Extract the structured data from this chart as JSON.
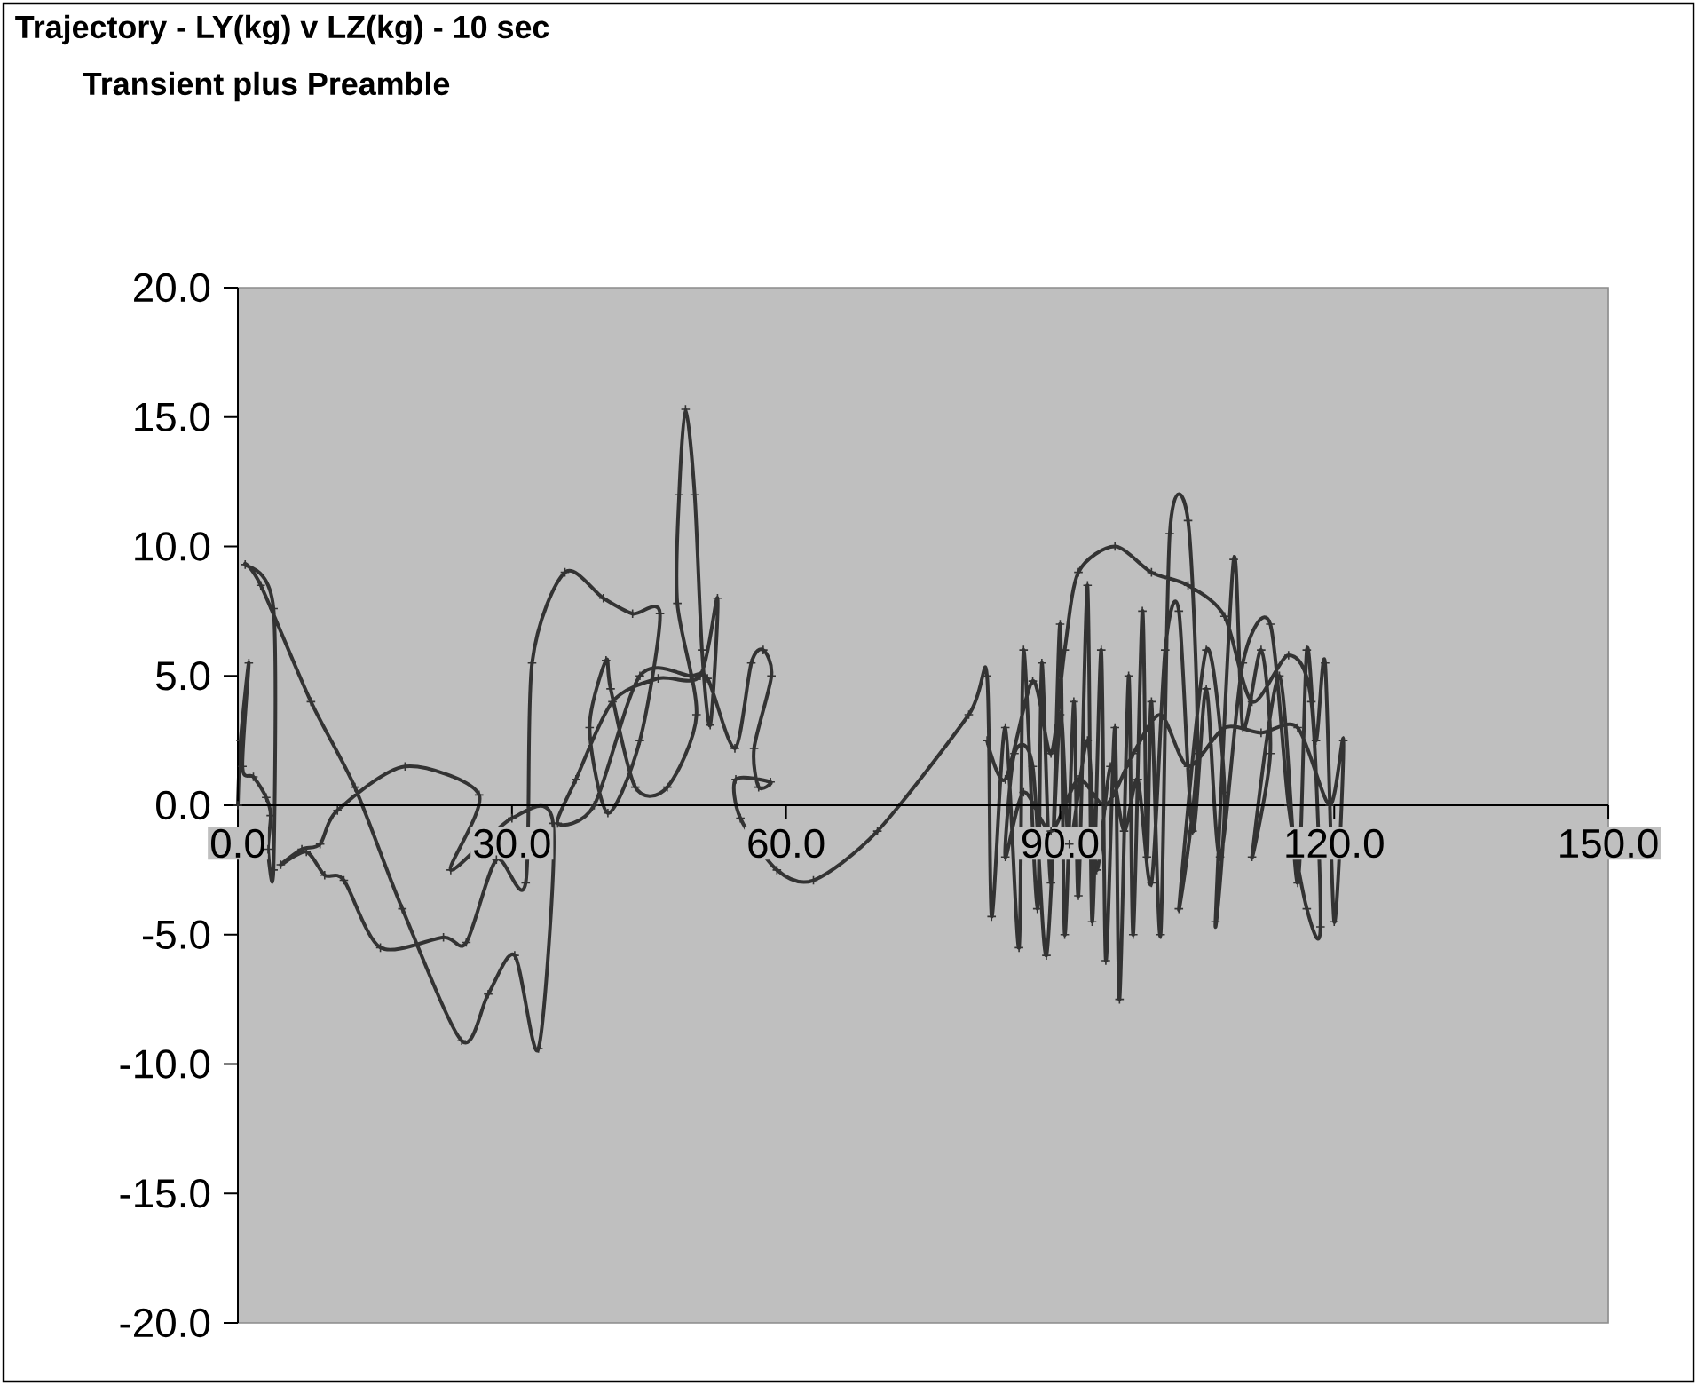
{
  "chart_data": {
    "type": "line",
    "title": "Trajectory - LY(kg) v LZ(kg) - 10 sec",
    "subtitle": "Transient plus Preamble",
    "xlim": [
      0,
      150
    ],
    "ylim": [
      -20,
      20
    ],
    "xticks": [
      {
        "value": 0,
        "label": "0.0"
      },
      {
        "value": 30,
        "label": "30.0"
      },
      {
        "value": 60,
        "label": "60.0"
      },
      {
        "value": 90,
        "label": "90.0"
      },
      {
        "value": 120,
        "label": "120.0"
      },
      {
        "value": 150,
        "label": "150.0"
      }
    ],
    "yticks": [
      {
        "value": -20,
        "label": "-20.0"
      },
      {
        "value": -15,
        "label": "-15.0"
      },
      {
        "value": -10,
        "label": "-10.0"
      },
      {
        "value": -5,
        "label": "-5.0"
      },
      {
        "value": 0,
        "label": "0.0"
      },
      {
        "value": 5,
        "label": "5.0"
      },
      {
        "value": 10,
        "label": "10.0"
      },
      {
        "value": 15,
        "label": "15.0"
      },
      {
        "value": 20,
        "label": "20.0"
      }
    ],
    "marker": "cross",
    "series": [
      {
        "color": "#333333",
        "x": [
          0.0,
          0.3,
          1.2,
          0.5,
          1.7,
          3.1,
          3.6,
          3.3,
          3.9,
          3.9,
          0.8,
          2.5,
          8,
          12.8,
          18,
          24.5,
          27.4,
          30.3,
          32.9,
          34.5,
          30,
          23.3,
          26.4,
          18.3,
          10.9,
          9.0,
          7.0,
          4.7,
          7.5,
          9.5,
          11.6,
          15.6,
          22.5,
          25,
          28.3,
          31.5,
          32.2,
          35.8,
          40,
          43.2,
          46.2,
          44,
          40.5,
          38.5,
          40.3,
          40.8,
          43.5,
          47,
          50.2,
          48.1,
          48.3,
          49.0,
          50.0,
          50.8,
          51.7,
          52.5,
          50.6,
          46,
          41,
          37,
          35,
          39,
          44,
          49.5,
          51.4,
          54.4,
          56.2,
          57.5,
          58.4,
          56.5,
          57,
          58.3,
          54.5,
          55,
          59,
          63,
          70,
          80,
          82,
          82.5,
          84,
          85.5,
          86,
          87.5,
          88,
          89,
          90,
          90.5,
          91.5,
          92,
          93,
          93.5,
          94.5,
          95,
          96,
          96.5,
          97.5,
          98,
          99,
          99.5,
          100,
          101,
          102,
          104,
          105,
          103,
          106,
          108,
          107,
          109,
          110,
          112,
          113,
          111,
          114,
          116,
          117,
          118,
          119,
          120,
          121,
          119.5,
          116,
          112,
          108,
          104,
          101,
          98,
          95,
          92,
          89,
          86,
          84,
          85,
          87,
          88.5,
          90,
          91,
          93,
          94,
          95.5,
          97,
          98.5,
          100,
          101.5,
          103,
          104.5,
          106,
          107.5,
          110,
          113,
          115,
          117,
          118.5,
          117.5,
          115,
          111,
          108,
          104,
          100,
          96,
          92,
          90.5,
          89,
          87,
          84,
          82
        ],
        "values": [
          0.0,
          2.5,
          5.5,
          1.5,
          1.1,
          0.3,
          -0.4,
          -1.7,
          -2.5,
          7.6,
          9.3,
          8.5,
          4,
          0.7,
          -4,
          -9.1,
          -7.3,
          -5.8,
          -9.4,
          -0.7,
          -0.5,
          -2.5,
          0.4,
          1.5,
          -0.2,
          -1.5,
          -1.7,
          -2.3,
          -1.8,
          -2.7,
          -2.9,
          -5.5,
          -5.1,
          -5.3,
          -2.1,
          -3.0,
          5.5,
          9.0,
          8.0,
          7.4,
          7.4,
          2.5,
          -0.3,
          3.0,
          5.6,
          4.5,
          0.7,
          0.7,
          3.5,
          7.8,
          12,
          15.3,
          12,
          6.0,
          3.1,
          8.0,
          5.0,
          4.9,
          4.0,
          1,
          -0.7,
          0.0,
          5.0,
          5.0,
          4.9,
          2.2,
          5.5,
          6.0,
          5.0,
          2.2,
          0.7,
          0.9,
          1.0,
          -0.5,
          -2.5,
          -2.9,
          -1,
          3.5,
          5,
          -4.3,
          3,
          -5.5,
          6,
          -4,
          5.5,
          -3,
          7,
          -5,
          4,
          -3.5,
          8.5,
          -4.5,
          6,
          -6,
          3,
          -7.5,
          5,
          -5,
          7.5,
          -2,
          4,
          -5,
          10.5,
          11,
          2,
          -4,
          6,
          0.5,
          -4.5,
          9.5,
          3,
          6,
          2,
          -2,
          5,
          -3,
          6,
          2.5,
          5.5,
          -4.5,
          2.5,
          0,
          3,
          2.8,
          3,
          1.5,
          3.5,
          2,
          0,
          1,
          -1,
          0.5,
          -2,
          2,
          1.5,
          -5.8,
          3.5,
          -1.5,
          2.5,
          -2.5,
          1.5,
          -1,
          1,
          -3,
          6,
          7.5,
          -1,
          4.5,
          -2,
          5.5,
          7,
          0,
          -4,
          -4.7,
          4,
          5.8,
          4,
          7.3,
          8.5,
          9,
          10,
          9,
          6,
          2,
          4.8,
          1,
          2.5
        ]
      }
    ]
  }
}
